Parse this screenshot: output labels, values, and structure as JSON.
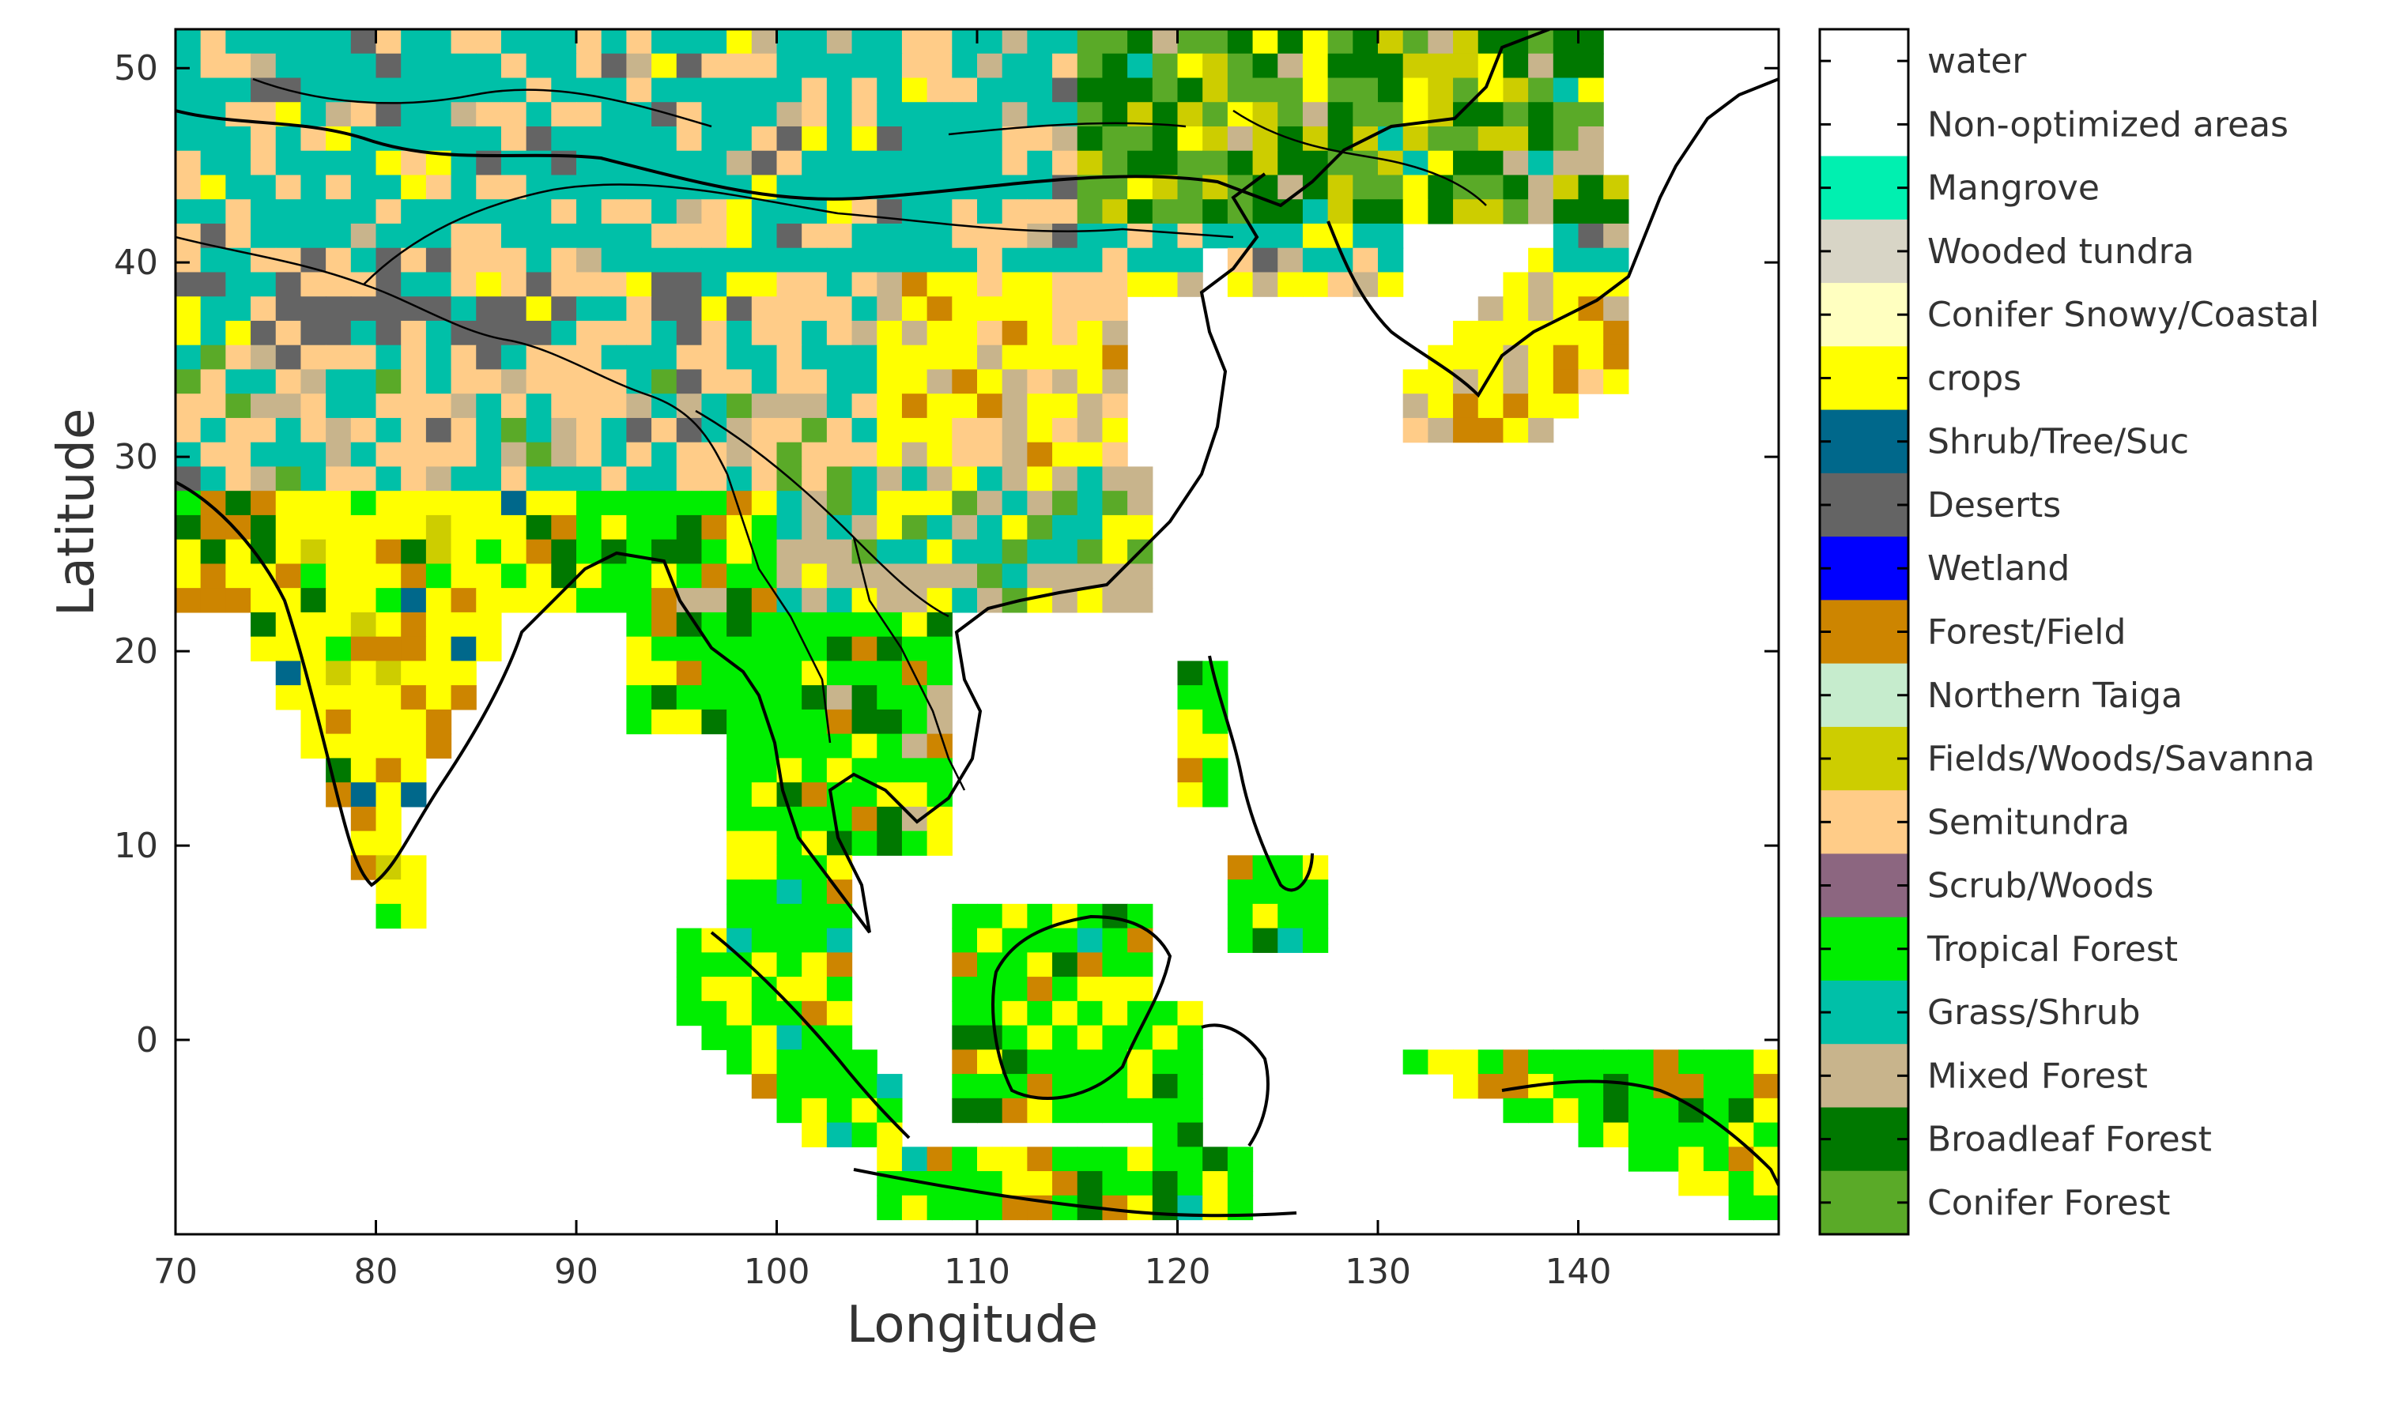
{
  "figure": {
    "xlabel": "Longitude",
    "ylabel": "Latitude",
    "x_ticks": [
      "70",
      "80",
      "90",
      "100",
      "110",
      "120",
      "130",
      "140"
    ],
    "y_ticks": [
      "0",
      "10",
      "20",
      "30",
      "40",
      "50"
    ]
  },
  "map_extent": {
    "lon_range": [
      70,
      150
    ],
    "lat_range": [
      -10,
      52
    ]
  },
  "legend": {
    "items": [
      {
        "label": "water",
        "color": "#ffffff"
      },
      {
        "label": "Non-optimized areas",
        "color": "#ffffff"
      },
      {
        "label": "Mangrove",
        "color": "#00f0b0"
      },
      {
        "label": "Wooded tundra",
        "color": "#d8d5c6"
      },
      {
        "label": "Conifer Snowy/Coastal",
        "color": "#ffffc0"
      },
      {
        "label": "crops",
        "color": "#ffff00"
      },
      {
        "label": "Shrub/Tree/Suc",
        "color": "#00688b"
      },
      {
        "label": "Deserts",
        "color": "#646464"
      },
      {
        "label": "Wetland",
        "color": "#0000ff"
      },
      {
        "label": "Forest/Field",
        "color": "#cd8500"
      },
      {
        "label": "Northern Taiga",
        "color": "#c6eccd"
      },
      {
        "label": "Fields/Woods/Savanna",
        "color": "#cdcd00"
      },
      {
        "label": "Semitundra",
        "color": "#ffcc88"
      },
      {
        "label": "Scrub/Woods",
        "color": "#8c6680"
      },
      {
        "label": "Tropical Forest",
        "color": "#00ee00"
      },
      {
        "label": "Grass/Shrub",
        "color": "#00c0a8"
      },
      {
        "label": "Mixed Forest",
        "color": "#c8b48c"
      },
      {
        "label": "Broadleaf Forest",
        "color": "#007800"
      },
      {
        "label": "Conifer Forest",
        "color": "#5aaa28"
      }
    ]
  }
}
